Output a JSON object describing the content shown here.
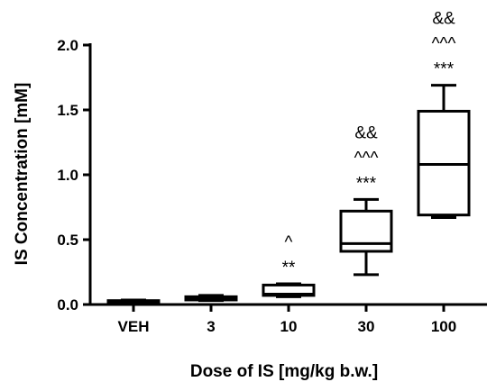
{
  "chart_data": {
    "type": "box",
    "title": "",
    "xlabel": "Dose of IS [mg/kg b.w.]",
    "ylabel": "IS Concentration [mM]",
    "ylim": [
      0,
      2.0
    ],
    "yticks": [
      0.0,
      0.5,
      1.0,
      1.5,
      2.0
    ],
    "ytick_labels": [
      "0.0",
      "0.5",
      "1.0",
      "1.5",
      "2.0"
    ],
    "grid": false,
    "legend": "none",
    "categories": [
      "VEH",
      "3",
      "10",
      "30",
      "100"
    ],
    "boxes": [
      {
        "category": "VEH",
        "min": 0.015,
        "q1": 0.02,
        "median": 0.025,
        "q3": 0.03,
        "max": 0.035
      },
      {
        "category": "3",
        "min": 0.03,
        "q1": 0.035,
        "median": 0.05,
        "q3": 0.06,
        "max": 0.07
      },
      {
        "category": "10",
        "min": 0.06,
        "q1": 0.07,
        "median": 0.08,
        "q3": 0.15,
        "max": 0.16
      },
      {
        "category": "30",
        "min": 0.23,
        "q1": 0.41,
        "median": 0.47,
        "q3": 0.72,
        "max": 0.81
      },
      {
        "category": "100",
        "min": 0.67,
        "q1": 0.69,
        "median": 1.08,
        "q3": 1.49,
        "max": 1.69
      }
    ],
    "annotations": [
      {
        "category": "10",
        "lines": [
          "^",
          "**"
        ]
      },
      {
        "category": "30",
        "lines": [
          "&&",
          "^^^",
          "***"
        ]
      },
      {
        "category": "100",
        "lines": [
          "&&",
          "^^^",
          "***"
        ]
      }
    ],
    "colors": {
      "stroke": "#000000",
      "fill": "#ffffff"
    }
  }
}
